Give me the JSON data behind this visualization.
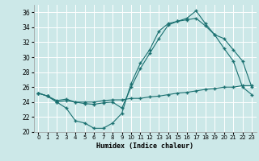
{
  "xlabel": "Humidex (Indice chaleur)",
  "bg_color": "#cce8e8",
  "grid_color": "#ffffff",
  "line_color": "#1a7070",
  "xlim": [
    -0.5,
    23.5
  ],
  "ylim": [
    20,
    37
  ],
  "xticks": [
    0,
    1,
    2,
    3,
    4,
    5,
    6,
    7,
    8,
    9,
    10,
    11,
    12,
    13,
    14,
    15,
    16,
    17,
    18,
    19,
    20,
    21,
    22,
    23
  ],
  "yticks": [
    20,
    22,
    24,
    26,
    28,
    30,
    32,
    34,
    36
  ],
  "curve1_x": [
    0,
    1,
    2,
    3,
    4,
    5,
    6,
    7,
    8,
    9,
    10,
    11,
    12,
    13,
    14,
    15,
    16,
    17,
    18,
    19,
    20,
    21,
    22,
    23
  ],
  "curve1_y": [
    25.2,
    24.8,
    24.0,
    23.2,
    21.5,
    21.2,
    20.5,
    20.5,
    21.2,
    22.5,
    26.5,
    29.2,
    31.0,
    33.5,
    34.5,
    34.8,
    35.2,
    36.2,
    34.5,
    33.0,
    31.2,
    29.5,
    26.0,
    25.0
  ],
  "curve2_x": [
    0,
    1,
    2,
    3,
    4,
    5,
    6,
    7,
    8,
    9,
    10,
    11,
    12,
    13,
    14,
    15,
    16,
    17,
    18,
    19,
    20,
    21,
    22,
    23
  ],
  "curve2_y": [
    25.2,
    24.8,
    24.2,
    24.4,
    24.0,
    23.8,
    23.7,
    23.9,
    24.0,
    23.2,
    26.0,
    28.5,
    30.5,
    32.5,
    34.3,
    34.8,
    35.0,
    35.2,
    34.2,
    33.0,
    32.5,
    31.0,
    29.5,
    26.0
  ],
  "curve3_x": [
    0,
    1,
    2,
    3,
    4,
    5,
    6,
    7,
    8,
    9,
    10,
    11,
    12,
    13,
    14,
    15,
    16,
    17,
    18,
    19,
    20,
    21,
    22,
    23
  ],
  "curve3_y": [
    25.2,
    24.8,
    24.0,
    24.2,
    24.0,
    24.0,
    24.0,
    24.2,
    24.3,
    24.3,
    24.5,
    24.5,
    24.7,
    24.8,
    25.0,
    25.2,
    25.3,
    25.5,
    25.7,
    25.8,
    26.0,
    26.0,
    26.2,
    26.2
  ]
}
